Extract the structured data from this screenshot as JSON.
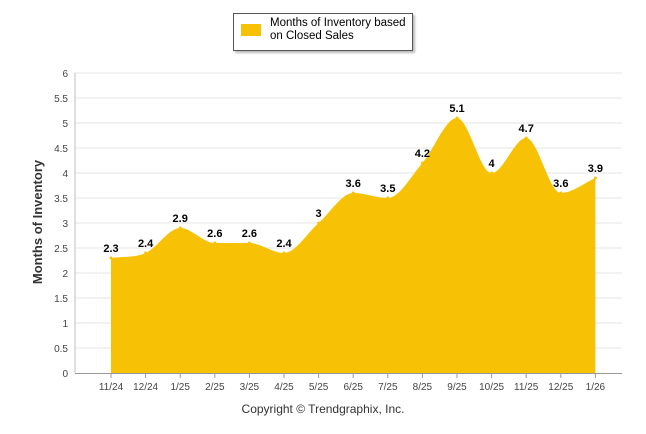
{
  "chart_data": {
    "type": "area",
    "categories": [
      "11/24",
      "12/24",
      "1/25",
      "2/25",
      "3/25",
      "4/25",
      "5/25",
      "6/25",
      "7/25",
      "8/25",
      "9/25",
      "10/25",
      "11/25",
      "12/25",
      "1/26"
    ],
    "series": [
      {
        "name": "Months of Inventory based on Closed Sales",
        "values": [
          2.3,
          2.4,
          2.9,
          2.6,
          2.6,
          2.4,
          3,
          3.6,
          3.5,
          4.2,
          5.1,
          4,
          4.7,
          3.6,
          3.9
        ],
        "labels": [
          "2.3",
          "2.4",
          "2.9",
          "2.6",
          "2.6",
          "2.4",
          "3",
          "3.6",
          "3.5",
          "4.2",
          "5.1",
          "4",
          "4.7",
          "3.6",
          "3.9"
        ],
        "color": "#f7c205"
      }
    ],
    "ylabel": "Months of Inventory",
    "xlabel": "",
    "ylim": [
      0,
      6
    ],
    "yticks": [
      "0",
      "0.5",
      "1",
      "1.5",
      "2",
      "2.5",
      "3",
      "3.5",
      "4",
      "4.5",
      "5",
      "5.5",
      "6"
    ],
    "grid": true,
    "legend_position": "top-center"
  },
  "legend": {
    "label": "Months of Inventory based on Closed Sales",
    "swatch_color": "#f7c205"
  },
  "footer": {
    "copyright": "Copyright © Trendgraphix, Inc."
  }
}
